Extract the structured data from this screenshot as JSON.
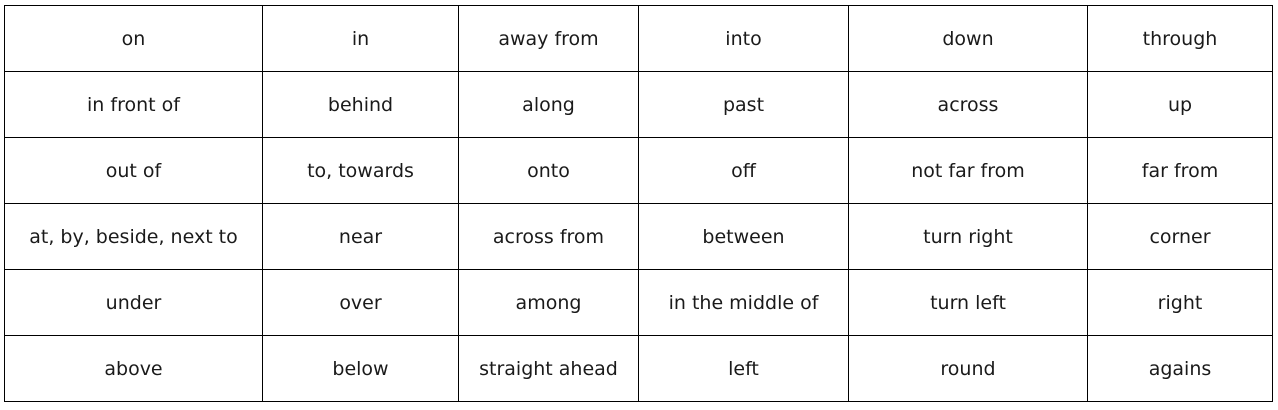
{
  "table": {
    "rows": [
      [
        "on",
        "in",
        "away from",
        "into",
        "down",
        "through"
      ],
      [
        "in front of",
        "behind",
        "along",
        "past",
        "across",
        "up"
      ],
      [
        "out of",
        "to, towards",
        "onto",
        "off",
        "not far from",
        "far from"
      ],
      [
        "at, by, beside, next to",
        "near",
        "across from",
        "between",
        "turn right",
        "corner"
      ],
      [
        "under",
        "over",
        "among",
        "in the middle of",
        "turn left",
        "right"
      ],
      [
        "above",
        "below",
        "straight ahead",
        "left",
        "round",
        "agains"
      ]
    ]
  }
}
